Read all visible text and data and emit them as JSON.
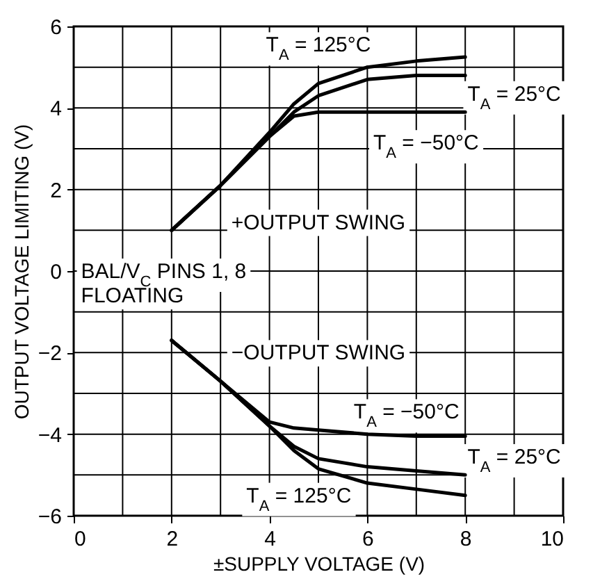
{
  "chart_data": {
    "type": "line",
    "xlabel": "±SUPPLY VOLTAGE (V)",
    "ylabel": "OUTPUT VOLTAGE LIMITING (V)",
    "xlim": [
      0,
      10
    ],
    "ylim": [
      -6,
      6
    ],
    "xticks": [
      0,
      {
        "value": 1,
        "label": null
      },
      2,
      {
        "value": 3,
        "label": null
      },
      4,
      {
        "value": 5,
        "label": null
      },
      6,
      {
        "value": 7,
        "label": null
      },
      8,
      {
        "value": 9,
        "label": null
      },
      10
    ],
    "yticks": [
      -6,
      {
        "value": -5,
        "label": null
      },
      -4,
      {
        "value": -3,
        "label": null
      },
      -2,
      {
        "value": -1,
        "label": null
      },
      0,
      {
        "value": 1,
        "label": null
      },
      2,
      {
        "value": 3,
        "label": null
      },
      4,
      {
        "value": 5,
        "label": null
      },
      6
    ],
    "grid": true,
    "line_style": "solid",
    "marker": "none",
    "series": [
      {
        "color": "#000000",
        "x": [
          2,
          3,
          4,
          4.5,
          5,
          6,
          7,
          8
        ],
        "values": [
          1,
          2.1,
          3.4,
          4.1,
          4.6,
          5.0,
          5.15,
          5.25
        ]
      },
      {
        "color": "#000000",
        "x": [
          2,
          3,
          4,
          4.5,
          5,
          6,
          7,
          8
        ],
        "values": [
          1,
          2.1,
          3.3,
          3.9,
          4.3,
          4.7,
          4.8,
          4.8
        ]
      },
      {
        "color": "#000000",
        "x": [
          2,
          3,
          4,
          4.5,
          5,
          6,
          7,
          8
        ],
        "values": [
          1,
          2.1,
          3.3,
          3.8,
          3.9,
          3.9,
          3.9,
          3.9
        ]
      },
      {
        "color": "#000000",
        "x": [
          2,
          3,
          4,
          4.5,
          5,
          6,
          7,
          8
        ],
        "values": [
          -1.7,
          -2.7,
          -3.7,
          -3.85,
          -3.9,
          -4.0,
          -4.05,
          -4.05
        ]
      },
      {
        "color": "#000000",
        "x": [
          2,
          3,
          4,
          4.5,
          5,
          6,
          7,
          8
        ],
        "values": [
          -1.7,
          -2.7,
          -3.8,
          -4.3,
          -4.6,
          -4.8,
          -4.9,
          -5.0
        ]
      },
      {
        "color": "#000000",
        "x": [
          2,
          3,
          4,
          4.5,
          5,
          6,
          7,
          8
        ],
        "values": [
          -1.7,
          -2.7,
          -3.8,
          -4.4,
          -4.85,
          -5.2,
          -5.35,
          -5.5
        ]
      }
    ],
    "annotations": [
      "T$_{A}$ = 125°C",
      "T$_{A}$ = 25°C",
      "T$_{A}$ = −50°C",
      "+OUTPUT SWING",
      "BAL/V$_{C}$ PINS 1, 8",
      "FLOATING",
      "−OUTPUT SWING",
      "T$_{A}$ = −50°C",
      "T$_{A}$ = 25°C",
      "T$_{A}$ = 125°C"
    ]
  }
}
